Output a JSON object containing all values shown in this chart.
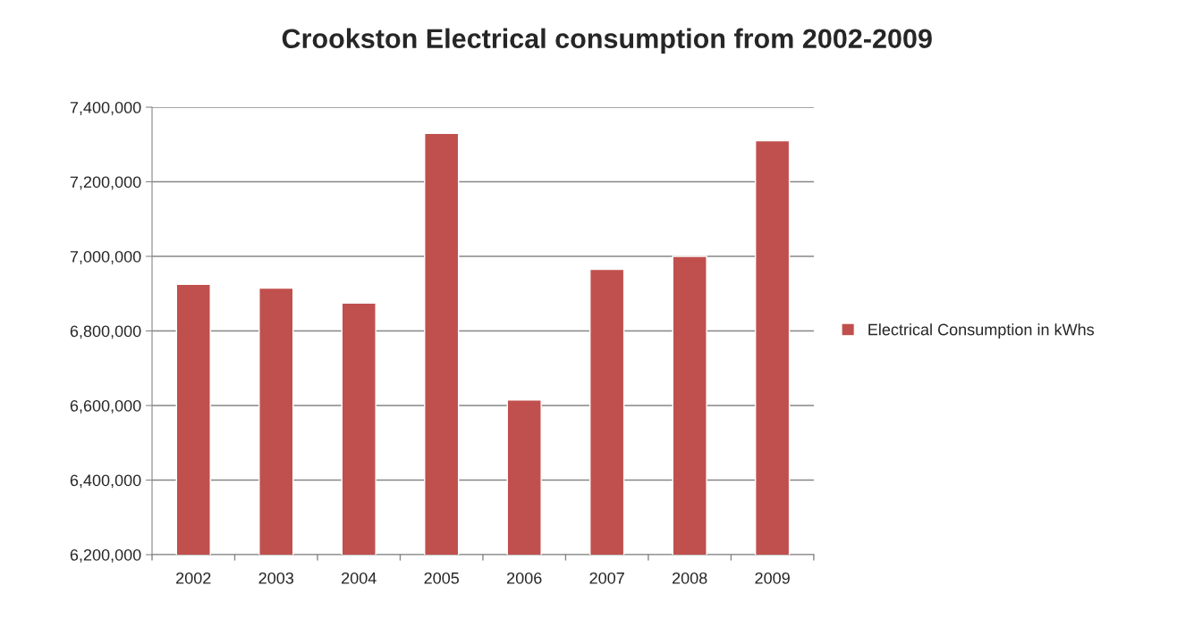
{
  "chart_data": {
    "type": "bar",
    "title": "Crookston Electrical consumption from 2002-2009",
    "categories": [
      "2002",
      "2003",
      "2004",
      "2005",
      "2006",
      "2007",
      "2008",
      "2009"
    ],
    "series": [
      {
        "name": "Electrical Consumption in kWhs",
        "color": "#c0504d",
        "values": [
          6925000,
          6915000,
          6875000,
          7330000,
          6615000,
          6965000,
          7000000,
          7310000
        ]
      }
    ],
    "ylim": [
      6200000,
      7400000
    ],
    "yticks": [
      {
        "value": 6200000,
        "label": "6,200,000"
      },
      {
        "value": 6400000,
        "label": "6,400,000"
      },
      {
        "value": 6600000,
        "label": "6,600,000"
      },
      {
        "value": 6800000,
        "label": "6,800,000"
      },
      {
        "value": 7000000,
        "label": "7,000,000"
      },
      {
        "value": 7200000,
        "label": "7,200,000"
      },
      {
        "value": 7400000,
        "label": "7,400,000"
      }
    ],
    "grid": "y",
    "legend": "right"
  }
}
